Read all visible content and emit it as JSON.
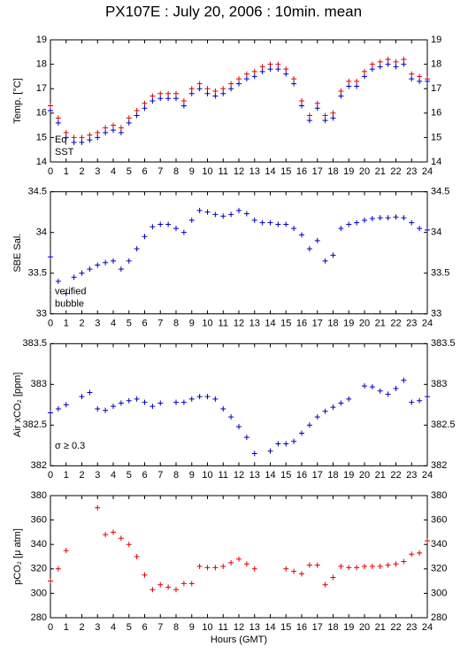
{
  "chart_data": [
    {
      "type": "scatter",
      "title": "PX107E : July 20, 2006 : 10min. mean",
      "ylabel": "Temp. [°C]",
      "mirror_y_axis": true,
      "xlim": [
        0,
        24
      ],
      "xticks": [
        0,
        1,
        2,
        3,
        4,
        5,
        6,
        7,
        8,
        9,
        10,
        11,
        12,
        13,
        14,
        15,
        16,
        17,
        18,
        19,
        20,
        21,
        22,
        23,
        24
      ],
      "ylim": [
        14,
        19
      ],
      "yticks": [
        14,
        15,
        16,
        17,
        18,
        19
      ],
      "x": [
        0,
        0.5,
        1,
        1.5,
        2,
        2.5,
        3,
        3.5,
        4,
        4.5,
        5,
        5.5,
        6,
        6.5,
        7,
        7.5,
        8,
        8.5,
        9,
        9.5,
        10,
        10.5,
        11,
        11.5,
        12,
        12.5,
        13,
        13.5,
        14,
        14.5,
        15,
        15.5,
        16,
        16.5,
        17,
        17.5,
        18,
        18.5,
        19,
        19.5,
        20,
        20.5,
        21,
        21.5,
        22,
        22.5,
        23,
        23.5,
        24
      ],
      "series": [
        {
          "name": "Eq",
          "color": "#e00000",
          "values": [
            16.3,
            15.8,
            15.2,
            15.0,
            15.0,
            15.1,
            15.2,
            15.4,
            15.5,
            15.4,
            15.8,
            16.1,
            16.4,
            16.7,
            16.8,
            16.8,
            16.8,
            16.5,
            17.0,
            17.2,
            17.0,
            16.9,
            17.0,
            17.2,
            17.4,
            17.6,
            17.7,
            17.9,
            18.0,
            18.0,
            17.8,
            17.4,
            16.5,
            15.9,
            16.4,
            15.9,
            16.0,
            16.9,
            17.3,
            17.3,
            17.7,
            18.0,
            18.1,
            18.2,
            18.1,
            18.2,
            17.6,
            17.5,
            17.4
          ]
        },
        {
          "name": "SST",
          "color": "#0000c0",
          "values": [
            16.1,
            15.6,
            15.0,
            14.8,
            14.8,
            14.9,
            15.0,
            15.2,
            15.3,
            15.2,
            15.6,
            15.9,
            16.2,
            16.5,
            16.6,
            16.6,
            16.6,
            16.3,
            16.8,
            17.0,
            16.8,
            16.7,
            16.8,
            17.0,
            17.2,
            17.4,
            17.5,
            17.7,
            17.8,
            17.8,
            17.6,
            17.2,
            16.3,
            15.7,
            16.2,
            15.7,
            15.8,
            16.7,
            17.1,
            17.1,
            17.5,
            17.8,
            17.9,
            18.0,
            17.9,
            18.0,
            17.4,
            17.3,
            17.3
          ]
        }
      ]
    },
    {
      "type": "scatter",
      "ylabel": "SBE Sal.",
      "mirror_y_axis": true,
      "xlim": [
        0,
        24
      ],
      "xticks": [
        0,
        1,
        2,
        3,
        4,
        5,
        6,
        7,
        8,
        9,
        10,
        11,
        12,
        13,
        14,
        15,
        16,
        17,
        18,
        19,
        20,
        21,
        22,
        23,
        24
      ],
      "ylim": [
        33,
        34.5
      ],
      "yticks": [
        33,
        33.5,
        34,
        34.5
      ],
      "x": [
        0,
        0.5,
        1,
        1.5,
        2,
        2.5,
        3,
        3.5,
        4,
        4.5,
        5,
        5.5,
        6,
        6.5,
        7,
        7.5,
        8,
        8.5,
        9,
        9.5,
        10,
        10.5,
        11,
        11.5,
        12,
        12.5,
        13,
        13.5,
        14,
        14.5,
        15,
        15.5,
        16,
        16.5,
        17,
        17.5,
        18,
        18.5,
        19,
        19.5,
        20,
        20.5,
        21,
        21.5,
        22,
        22.5,
        23,
        23.5,
        24
      ],
      "series": [
        {
          "name": "verified",
          "color": "#0000c0",
          "values": [
            33.7,
            33.4,
            33.25,
            33.45,
            33.5,
            33.55,
            33.6,
            33.63,
            33.65,
            33.55,
            33.65,
            33.8,
            33.95,
            34.07,
            34.1,
            34.1,
            34.05,
            34.0,
            34.15,
            34.27,
            34.25,
            34.22,
            34.2,
            34.22,
            34.27,
            34.23,
            34.15,
            34.12,
            34.12,
            34.1,
            34.1,
            34.05,
            33.97,
            33.8,
            33.9,
            33.65,
            33.72,
            34.05,
            34.1,
            34.12,
            34.15,
            34.17,
            34.18,
            34.18,
            34.19,
            34.18,
            34.12,
            34.05,
            34.03
          ]
        },
        {
          "name": "bubble",
          "color": "#d000d0",
          "values": [
            null,
            null,
            null,
            null,
            null,
            null,
            null,
            null,
            null,
            null,
            null,
            null,
            null,
            null,
            null,
            null,
            null,
            null,
            null,
            null,
            null,
            null,
            null,
            null,
            null,
            null,
            null,
            null,
            null,
            null,
            null,
            null,
            null,
            null,
            null,
            null,
            null,
            null,
            null,
            null,
            null,
            null,
            null,
            null,
            null,
            null,
            null,
            null,
            null
          ]
        }
      ]
    },
    {
      "type": "scatter",
      "ylabel": "Air xCO₂ [ppm]",
      "mirror_y_axis": true,
      "annotation": "σ ≥ 0.3",
      "annotation_color": "#d000d0",
      "xlim": [
        0,
        24
      ],
      "xticks": [
        0,
        1,
        2,
        3,
        4,
        5,
        6,
        7,
        8,
        9,
        10,
        11,
        12,
        13,
        14,
        15,
        16,
        17,
        18,
        19,
        20,
        21,
        22,
        23,
        24
      ],
      "ylim": [
        382,
        383.5
      ],
      "yticks": [
        382,
        382.5,
        383,
        383.5
      ],
      "x": [
        0,
        0.5,
        1,
        1.5,
        2,
        2.5,
        3,
        3.5,
        4,
        4.5,
        5,
        5.5,
        6,
        6.5,
        7,
        7.5,
        8,
        8.5,
        9,
        9.5,
        10,
        10.5,
        11,
        11.5,
        12,
        12.5,
        13,
        13.5,
        14,
        14.5,
        15,
        15.5,
        16,
        16.5,
        17,
        17.5,
        18,
        18.5,
        19,
        19.5,
        20,
        20.5,
        21,
        21.5,
        22,
        22.5,
        23,
        23.5,
        24
      ],
      "series": [
        {
          "color": "#0000c0",
          "values": [
            382.65,
            382.7,
            382.75,
            null,
            382.85,
            382.9,
            382.7,
            382.68,
            382.73,
            382.77,
            382.8,
            382.82,
            382.78,
            382.73,
            382.77,
            null,
            382.78,
            382.78,
            382.82,
            382.85,
            382.85,
            382.82,
            382.7,
            382.6,
            382.48,
            382.35,
            382.15,
            null,
            382.18,
            382.27,
            382.27,
            382.3,
            382.4,
            382.5,
            382.6,
            382.67,
            382.72,
            382.77,
            382.82,
            null,
            382.98,
            382.97,
            382.92,
            382.88,
            382.95,
            383.05,
            382.78,
            382.8,
            382.85
          ]
        }
      ]
    },
    {
      "type": "scatter",
      "ylabel": "pCO₂ [μ atm]",
      "xlabel": "Hours (GMT)",
      "mirror_y_axis": true,
      "xlim": [
        0,
        24
      ],
      "xticks": [
        0,
        1,
        2,
        3,
        4,
        5,
        6,
        7,
        8,
        9,
        10,
        11,
        12,
        13,
        14,
        15,
        16,
        17,
        18,
        19,
        20,
        21,
        22,
        23,
        24
      ],
      "ylim": [
        280,
        380
      ],
      "yticks": [
        280,
        300,
        320,
        340,
        360,
        380
      ],
      "x": [
        0,
        0.5,
        1,
        1.5,
        2,
        2.5,
        3,
        3.5,
        4,
        4.5,
        5,
        5.5,
        6,
        6.5,
        7,
        7.5,
        8,
        8.5,
        9,
        9.5,
        10,
        10.5,
        11,
        11.5,
        12,
        12.5,
        13,
        13.5,
        14,
        14.5,
        15,
        15.5,
        16,
        16.5,
        17,
        17.5,
        18,
        18.5,
        19,
        19.5,
        20,
        20.5,
        21,
        21.5,
        22,
        22.5,
        23,
        23.5,
        24
      ],
      "series": [
        {
          "color": "#e00000",
          "values": [
            310,
            320,
            335,
            null,
            null,
            null,
            370,
            348,
            350,
            345,
            340,
            330,
            315,
            303,
            307,
            305,
            303,
            308,
            308,
            322,
            321,
            321,
            322,
            325,
            328,
            324,
            320,
            null,
            null,
            null,
            320,
            318,
            316,
            323,
            323,
            307,
            313,
            322,
            321,
            321,
            322,
            322,
            322,
            323,
            324,
            326,
            332,
            333,
            343
          ]
        }
      ]
    }
  ]
}
